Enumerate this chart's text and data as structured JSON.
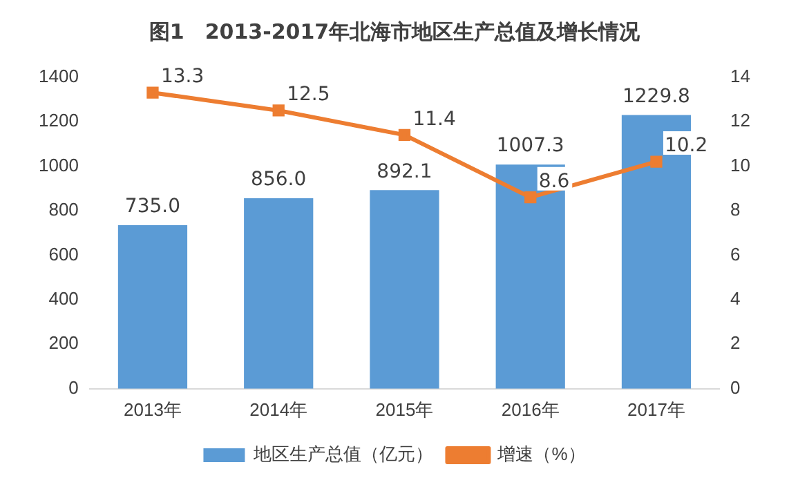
{
  "chart_data": {
    "type": "bar",
    "title": "图1　2013-2017年北海市地区生产总值及增长情况",
    "categories": [
      "2013年",
      "2014年",
      "2015年",
      "2016年",
      "2017年"
    ],
    "series": [
      {
        "name": "地区生产总值（亿元）",
        "color": "#5b9bd5",
        "values": [
          735.0,
          856.0,
          892.1,
          1007.3,
          1229.8
        ],
        "value_labels": [
          "735.0",
          "856.0",
          "892.1",
          "1007.3",
          "1229.8"
        ]
      },
      {
        "name": "增速（%）",
        "type": "line",
        "axis": "y2",
        "color": "#ed7d31",
        "values": [
          13.3,
          12.5,
          11.4,
          8.6,
          10.2
        ],
        "value_labels": [
          "13.3",
          "12.5",
          "11.4",
          "8.6",
          "10.2"
        ]
      }
    ],
    "ylim": [
      0,
      1400
    ],
    "yticks": [
      0,
      200,
      400,
      600,
      800,
      1000,
      1200,
      1400
    ],
    "y2lim": [
      0,
      14
    ],
    "y2ticks": [
      0,
      2,
      4,
      6,
      8,
      10,
      12,
      14
    ],
    "legend": "bottom",
    "grid": false,
    "marker": "square",
    "line_style": "solid"
  }
}
